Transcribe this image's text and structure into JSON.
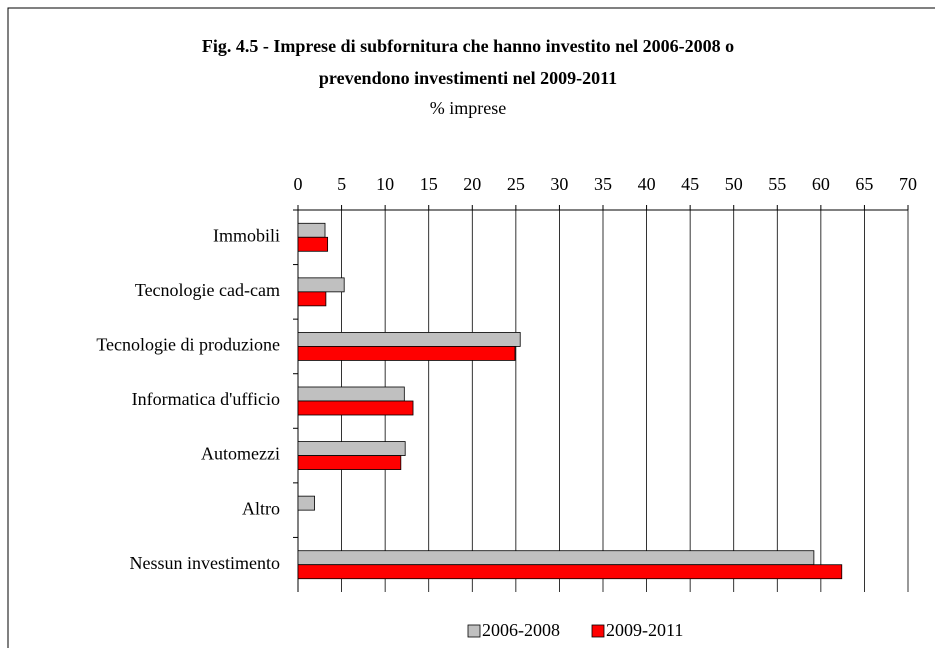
{
  "chart_data": {
    "type": "bar",
    "orientation": "horizontal",
    "title": [
      "Fig. 4.5 - Imprese di subfornitura che hanno investito nel 2006-2008 o",
      "prevendono investimenti nel 2009-2011"
    ],
    "subtitle": "% imprese",
    "categories": [
      "Immobili",
      "Tecnologie cad-cam",
      "Tecnologie di produzione",
      "Informatica d'ufficio",
      "Automezzi",
      "Altro",
      "Nessun investimento"
    ],
    "series": [
      {
        "name": "2006-2008",
        "color": "#c0c0c0",
        "values": [
          3.1,
          5.3,
          25.5,
          12.2,
          12.3,
          1.9,
          59.2
        ]
      },
      {
        "name": "2009-2011",
        "color": "#ff0000",
        "values": [
          3.4,
          3.2,
          24.9,
          13.2,
          11.8,
          0,
          62.4
        ]
      }
    ],
    "xlim": [
      0,
      70
    ],
    "xticks": [
      0,
      5,
      10,
      15,
      20,
      25,
      30,
      35,
      40,
      45,
      50,
      55,
      60,
      65,
      70
    ],
    "grid": true,
    "legend": "bottom"
  }
}
